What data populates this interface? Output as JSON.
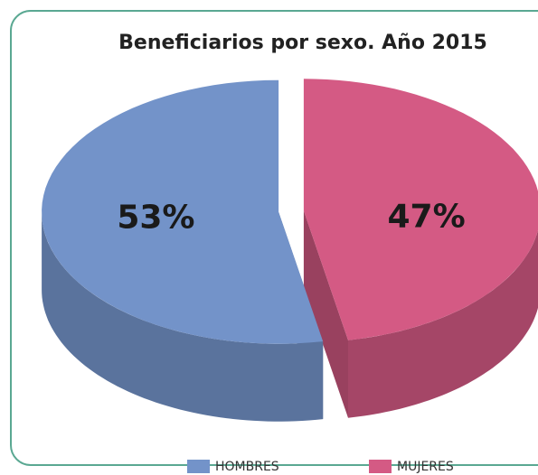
{
  "chart_data": {
    "type": "pie3d",
    "title": "Beneficiarios por sexo. Año 2015",
    "categories": [
      "HOMBRES",
      "MUJERES"
    ],
    "values": [
      53,
      47
    ],
    "value_labels": [
      "53%",
      "47%"
    ],
    "colors": [
      "#7393c9",
      "#d45a84"
    ],
    "legend": "bottom"
  }
}
